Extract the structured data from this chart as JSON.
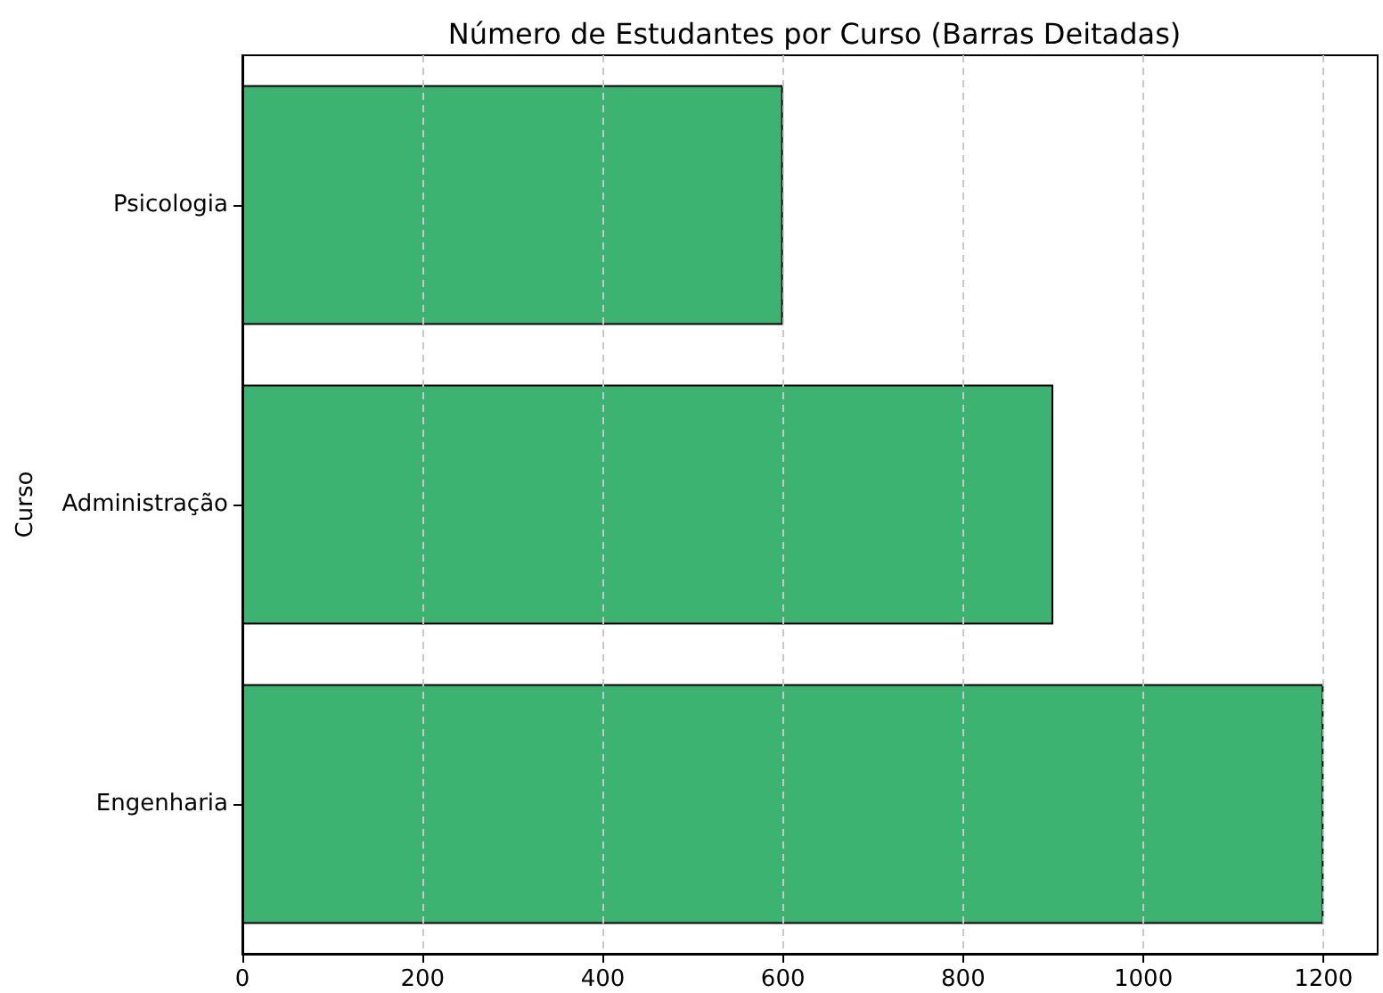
{
  "chart_data": {
    "type": "bar",
    "orientation": "horizontal",
    "title": "Número de Estudantes por Curso (Barras Deitadas)",
    "ylabel": "Curso",
    "categories": [
      "Psicologia",
      "Administração",
      "Engenharia"
    ],
    "values": [
      600,
      900,
      1200
    ],
    "color": "#3cb371",
    "xlim": [
      0,
      1260
    ],
    "xticks": [
      0,
      200,
      400,
      600,
      800,
      1000,
      1200
    ],
    "grid": "x"
  }
}
